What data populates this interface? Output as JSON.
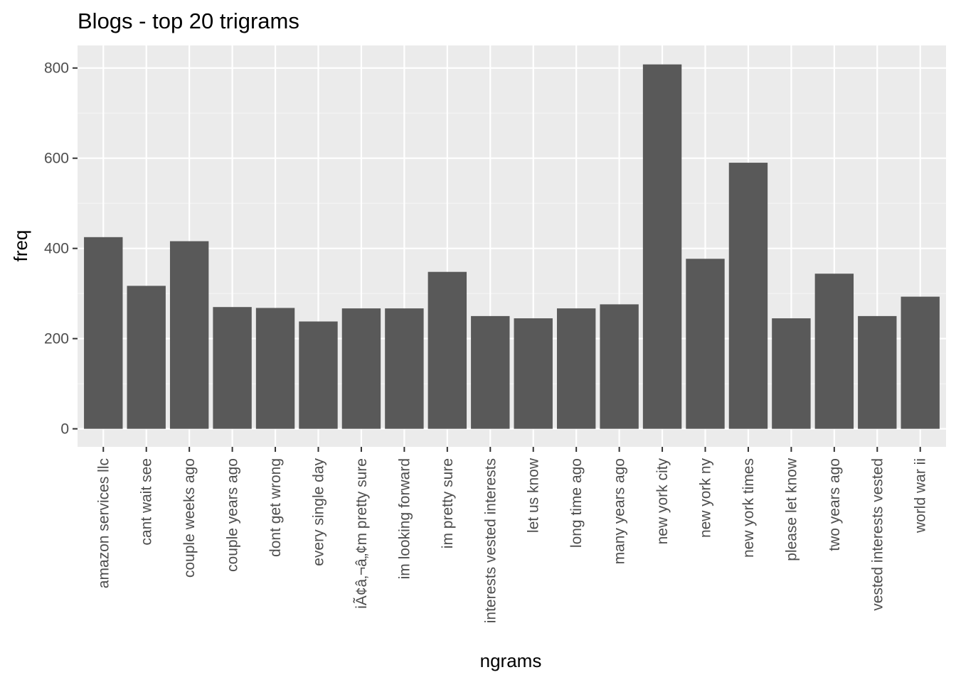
{
  "chart_data": {
    "type": "bar",
    "title": "Blogs - top 20 trigrams",
    "xlabel": "ngrams",
    "ylabel": "freq",
    "ylim": [
      -40,
      850
    ],
    "yticks": [
      0,
      200,
      400,
      600,
      800
    ],
    "grid": true,
    "categories": [
      "amazon services llc",
      "cant wait see",
      "couple weeks ago",
      "couple years ago",
      "dont get wrong",
      "every single day",
      "iÃ¢â‚¬â„¢m pretty sure",
      "im looking forward",
      "im pretty sure",
      "interests vested interests",
      "let us know",
      "long time ago",
      "many years ago",
      "new york city",
      "new york ny",
      "new york times",
      "please let know",
      "two years ago",
      "vested interests vested",
      "world war ii"
    ],
    "values": [
      425,
      317,
      416,
      270,
      268,
      238,
      267,
      267,
      348,
      250,
      245,
      267,
      276,
      808,
      377,
      590,
      245,
      344,
      250,
      293
    ],
    "colors": {
      "bar": "#595959",
      "panel": "#ebebeb",
      "grid_major": "#ffffff",
      "grid_minor": "#f5f5f5",
      "tick": "#333333"
    }
  }
}
